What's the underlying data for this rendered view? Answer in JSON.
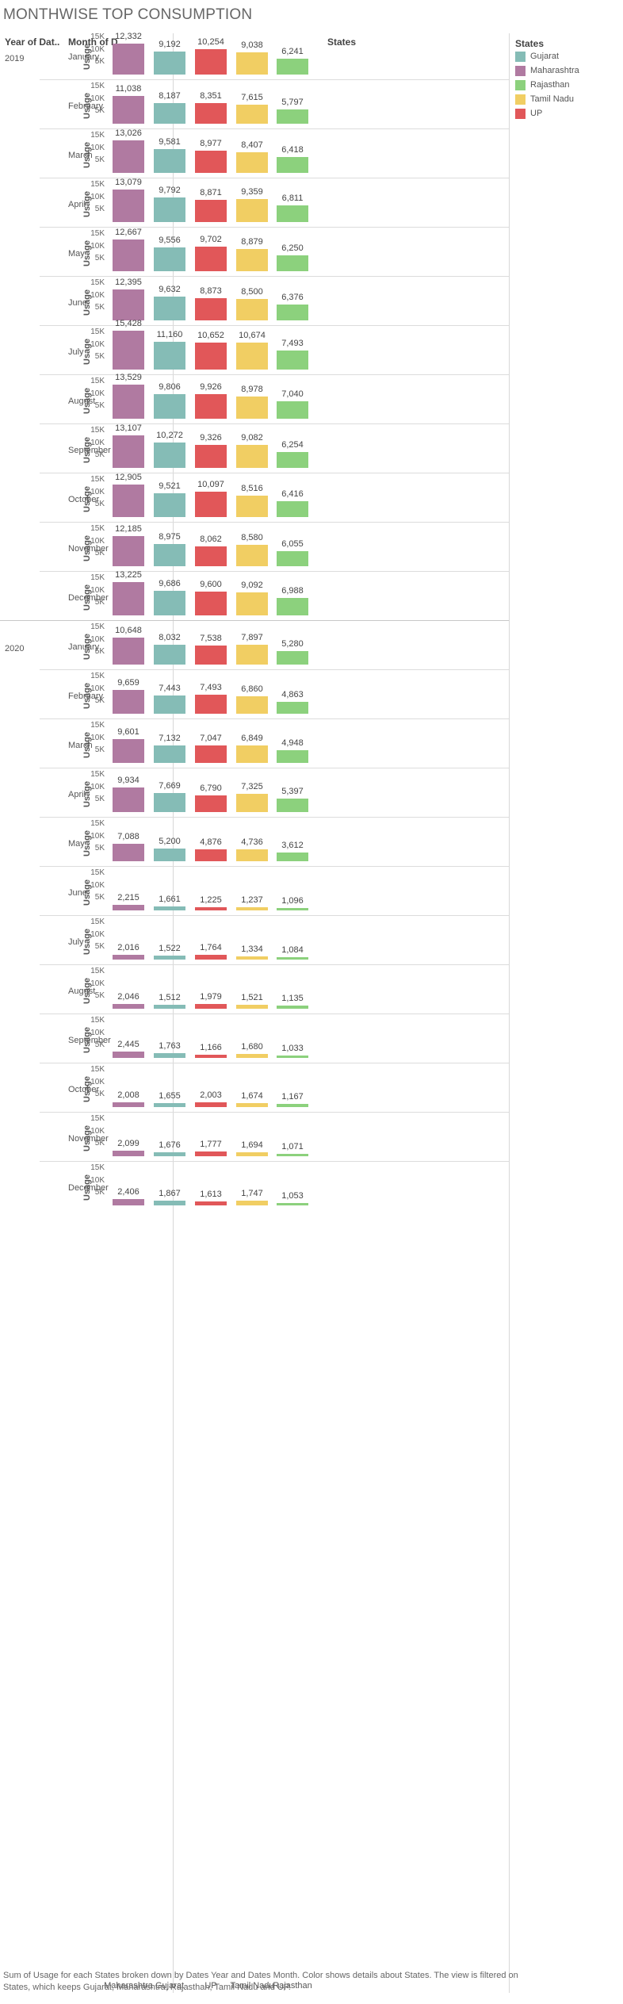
{
  "title": "MONTHWISE TOP CONSUMPTION",
  "headers": {
    "year": "Year of Dat..",
    "month": "Month of D...",
    "states": "States"
  },
  "legend": {
    "title": "States",
    "items": [
      {
        "label": "Gujarat",
        "color": "#85bcb6"
      },
      {
        "label": "Maharashtra",
        "color": "#b07aa1"
      },
      {
        "label": "Rajasthan",
        "color": "#8cd17d"
      },
      {
        "label": "Tamil Nadu",
        "color": "#f1ce63"
      },
      {
        "label": "UP",
        "color": "#e15759"
      }
    ]
  },
  "caption": "Sum of Usage for each States broken down by Dates Year and Dates Month.  Color shows details about States. The view is filtered on States, which keeps Gujarat, Maharashtra, Rajasthan, Tamil Nadu and UP.",
  "chart_data": {
    "type": "bar",
    "title": "MONTHWISE TOP CONSUMPTION",
    "ylabel": "Usage",
    "ylim": [
      0,
      17000
    ],
    "yticks": [
      "5K",
      "10K",
      "15K"
    ],
    "categories": [
      "Maharashtra",
      "Gujarat",
      "UP",
      "Tamil Nadu",
      "Rajasthan"
    ],
    "colors": [
      "#b07aa1",
      "#85bcb6",
      "#e15759",
      "#f1ce63",
      "#8cd17d"
    ],
    "panels": [
      {
        "year": "2019",
        "month": "January",
        "values": [
          12332,
          9192,
          10254,
          9038,
          6241
        ]
      },
      {
        "year": "",
        "month": "February",
        "values": [
          11038,
          8187,
          8351,
          7615,
          5797
        ]
      },
      {
        "year": "",
        "month": "March",
        "values": [
          13026,
          9581,
          8977,
          8407,
          6418
        ]
      },
      {
        "year": "",
        "month": "April",
        "values": [
          13079,
          9792,
          8871,
          9359,
          6811
        ]
      },
      {
        "year": "",
        "month": "May",
        "values": [
          12667,
          9556,
          9702,
          8879,
          6250
        ]
      },
      {
        "year": "",
        "month": "June",
        "values": [
          12395,
          9632,
          8873,
          8500,
          6376
        ]
      },
      {
        "year": "",
        "month": "July",
        "values": [
          15428,
          11160,
          10652,
          10674,
          7493
        ]
      },
      {
        "year": "",
        "month": "August",
        "values": [
          13529,
          9806,
          9926,
          8978,
          7040
        ]
      },
      {
        "year": "",
        "month": "September",
        "values": [
          13107,
          10272,
          9326,
          9082,
          6254
        ]
      },
      {
        "year": "",
        "month": "October",
        "values": [
          12905,
          9521,
          10097,
          8516,
          6416
        ]
      },
      {
        "year": "",
        "month": "November",
        "values": [
          12185,
          8975,
          8062,
          8580,
          6055
        ]
      },
      {
        "year": "",
        "month": "December",
        "values": [
          13225,
          9686,
          9600,
          9092,
          6988
        ]
      },
      {
        "year": "2020",
        "month": "January",
        "values": [
          10648,
          8032,
          7538,
          7897,
          5280
        ]
      },
      {
        "year": "",
        "month": "February",
        "values": [
          9659,
          7443,
          7493,
          6860,
          4863
        ]
      },
      {
        "year": "",
        "month": "March",
        "values": [
          9601,
          7132,
          7047,
          6849,
          4948
        ]
      },
      {
        "year": "",
        "month": "April",
        "values": [
          9934,
          7669,
          6790,
          7325,
          5397
        ]
      },
      {
        "year": "",
        "month": "May",
        "values": [
          7088,
          5200,
          4876,
          4736,
          3612
        ]
      },
      {
        "year": "",
        "month": "June",
        "values": [
          2215,
          1661,
          1225,
          1237,
          1096
        ]
      },
      {
        "year": "",
        "month": "July",
        "values": [
          2016,
          1522,
          1764,
          1334,
          1084
        ]
      },
      {
        "year": "",
        "month": "August",
        "values": [
          2046,
          1512,
          1979,
          1521,
          1135
        ]
      },
      {
        "year": "",
        "month": "September",
        "values": [
          2445,
          1763,
          1166,
          1680,
          1033
        ]
      },
      {
        "year": "",
        "month": "October",
        "values": [
          2008,
          1655,
          2003,
          1674,
          1167
        ]
      },
      {
        "year": "",
        "month": "November",
        "values": [
          2099,
          1676,
          1777,
          1694,
          1071
        ]
      },
      {
        "year": "",
        "month": "December",
        "values": [
          2406,
          1867,
          1613,
          1747,
          1053
        ]
      }
    ]
  }
}
